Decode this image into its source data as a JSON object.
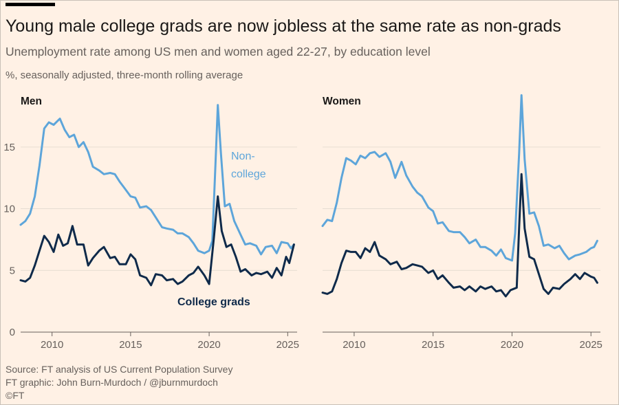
{
  "header": {
    "title": "Young male college grads are now jobless at the same rate as non-grads",
    "subtitle": "Unemployment rate among US men and women aged 22-27, by education level",
    "units": "%, seasonally adjusted, three-month rolling average"
  },
  "footer": {
    "source": "Source: FT analysis of US Current Population Survey",
    "credit": "FT graphic: John Burn-Murdoch / @jburnmurdoch",
    "copyright": "©FT"
  },
  "colors": {
    "background": "#fff1e5",
    "non_college": "#5da5da",
    "college": "#0f2a4a",
    "grid": "#e6dcd2",
    "axis": "#66605c"
  },
  "chart_data": [
    {
      "type": "line",
      "title": "Men",
      "xlim": [
        2008.0,
        2025.6
      ],
      "ylim": [
        0,
        18
      ],
      "x_ticks": [
        2010,
        2015,
        2020,
        2025
      ],
      "y_ticks": [
        0,
        5,
        10,
        15
      ],
      "grid": true,
      "annotations": [
        {
          "series": "Non-college",
          "text": [
            "Non-",
            "college"
          ]
        },
        {
          "series": "College grads",
          "text": [
            "College grads"
          ]
        }
      ],
      "series": [
        {
          "name": "Non-college",
          "color": "#5da5da",
          "points": [
            [
              2008.0,
              8.7
            ],
            [
              2008.3,
              9.0
            ],
            [
              2008.6,
              9.6
            ],
            [
              2008.9,
              11.0
            ],
            [
              2009.2,
              13.5
            ],
            [
              2009.5,
              16.5
            ],
            [
              2009.8,
              17.0
            ],
            [
              2010.1,
              16.8
            ],
            [
              2010.5,
              17.3
            ],
            [
              2010.8,
              16.4
            ],
            [
              2011.1,
              15.8
            ],
            [
              2011.4,
              16.0
            ],
            [
              2011.7,
              15.0
            ],
            [
              2012.0,
              15.4
            ],
            [
              2012.3,
              14.6
            ],
            [
              2012.6,
              13.4
            ],
            [
              2013.0,
              13.1
            ],
            [
              2013.3,
              12.8
            ],
            [
              2013.7,
              12.9
            ],
            [
              2014.0,
              12.8
            ],
            [
              2014.3,
              12.2
            ],
            [
              2014.6,
              11.7
            ],
            [
              2015.0,
              11.0
            ],
            [
              2015.3,
              10.9
            ],
            [
              2015.6,
              10.1
            ],
            [
              2016.0,
              10.2
            ],
            [
              2016.3,
              9.9
            ],
            [
              2016.6,
              9.3
            ],
            [
              2017.0,
              8.5
            ],
            [
              2017.3,
              8.4
            ],
            [
              2017.7,
              8.3
            ],
            [
              2018.0,
              8.0
            ],
            [
              2018.3,
              8.0
            ],
            [
              2018.7,
              7.7
            ],
            [
              2019.0,
              7.2
            ],
            [
              2019.3,
              6.6
            ],
            [
              2019.7,
              6.4
            ],
            [
              2020.0,
              6.6
            ],
            [
              2020.2,
              7.4
            ],
            [
              2020.4,
              13.5
            ],
            [
              2020.55,
              18.4
            ],
            [
              2020.75,
              14.5
            ],
            [
              2021.0,
              10.2
            ],
            [
              2021.3,
              10.4
            ],
            [
              2021.6,
              9.0
            ],
            [
              2022.0,
              7.9
            ],
            [
              2022.3,
              7.1
            ],
            [
              2022.6,
              7.2
            ],
            [
              2023.0,
              7.0
            ],
            [
              2023.3,
              6.3
            ],
            [
              2023.6,
              6.9
            ],
            [
              2024.0,
              7.0
            ],
            [
              2024.3,
              6.4
            ],
            [
              2024.6,
              7.3
            ],
            [
              2025.0,
              7.2
            ],
            [
              2025.2,
              6.8
            ],
            [
              2025.4,
              7.1
            ]
          ]
        },
        {
          "name": "College grads",
          "color": "#0f2a4a",
          "points": [
            [
              2008.0,
              4.2
            ],
            [
              2008.3,
              4.1
            ],
            [
              2008.6,
              4.4
            ],
            [
              2008.9,
              5.4
            ],
            [
              2009.2,
              6.6
            ],
            [
              2009.5,
              7.8
            ],
            [
              2009.8,
              7.3
            ],
            [
              2010.1,
              6.5
            ],
            [
              2010.4,
              7.9
            ],
            [
              2010.7,
              7.0
            ],
            [
              2011.0,
              7.2
            ],
            [
              2011.3,
              8.6
            ],
            [
              2011.6,
              7.1
            ],
            [
              2012.0,
              7.1
            ],
            [
              2012.3,
              5.4
            ],
            [
              2012.6,
              6.0
            ],
            [
              2013.0,
              6.6
            ],
            [
              2013.3,
              6.9
            ],
            [
              2013.7,
              6.0
            ],
            [
              2014.0,
              6.1
            ],
            [
              2014.3,
              5.5
            ],
            [
              2014.7,
              5.5
            ],
            [
              2015.0,
              6.3
            ],
            [
              2015.3,
              5.9
            ],
            [
              2015.6,
              4.6
            ],
            [
              2016.0,
              4.4
            ],
            [
              2016.3,
              3.8
            ],
            [
              2016.6,
              4.7
            ],
            [
              2017.0,
              4.6
            ],
            [
              2017.3,
              4.2
            ],
            [
              2017.7,
              4.3
            ],
            [
              2018.0,
              3.9
            ],
            [
              2018.3,
              4.1
            ],
            [
              2018.7,
              4.6
            ],
            [
              2019.0,
              4.8
            ],
            [
              2019.3,
              5.3
            ],
            [
              2019.7,
              4.6
            ],
            [
              2020.0,
              3.9
            ],
            [
              2020.3,
              7.6
            ],
            [
              2020.55,
              11.0
            ],
            [
              2020.8,
              8.2
            ],
            [
              2021.1,
              6.9
            ],
            [
              2021.4,
              7.1
            ],
            [
              2021.7,
              6.1
            ],
            [
              2022.0,
              4.9
            ],
            [
              2022.3,
              5.1
            ],
            [
              2022.7,
              4.6
            ],
            [
              2023.0,
              4.8
            ],
            [
              2023.3,
              4.7
            ],
            [
              2023.7,
              4.9
            ],
            [
              2024.0,
              4.4
            ],
            [
              2024.3,
              5.2
            ],
            [
              2024.6,
              4.6
            ],
            [
              2024.9,
              6.1
            ],
            [
              2025.1,
              5.6
            ],
            [
              2025.4,
              7.1
            ]
          ]
        }
      ]
    },
    {
      "type": "line",
      "title": "Women",
      "xlim": [
        2008.0,
        2025.6
      ],
      "ylim": [
        0,
        18
      ],
      "x_ticks": [
        2010,
        2015,
        2020,
        2025
      ],
      "y_ticks": [
        0,
        5,
        10,
        15
      ],
      "grid": true,
      "series": [
        {
          "name": "Non-college",
          "color": "#5da5da",
          "points": [
            [
              2008.0,
              8.6
            ],
            [
              2008.3,
              9.1
            ],
            [
              2008.6,
              9.0
            ],
            [
              2008.9,
              10.5
            ],
            [
              2009.2,
              12.5
            ],
            [
              2009.5,
              14.1
            ],
            [
              2009.8,
              13.9
            ],
            [
              2010.1,
              13.6
            ],
            [
              2010.4,
              14.3
            ],
            [
              2010.7,
              14.1
            ],
            [
              2011.0,
              14.5
            ],
            [
              2011.3,
              14.6
            ],
            [
              2011.6,
              14.2
            ],
            [
              2012.0,
              14.5
            ],
            [
              2012.3,
              13.8
            ],
            [
              2012.6,
              12.5
            ],
            [
              2013.0,
              13.8
            ],
            [
              2013.3,
              12.7
            ],
            [
              2013.7,
              11.8
            ],
            [
              2014.0,
              11.3
            ],
            [
              2014.3,
              11.0
            ],
            [
              2014.7,
              10.1
            ],
            [
              2015.0,
              9.8
            ],
            [
              2015.3,
              8.8
            ],
            [
              2015.6,
              8.9
            ],
            [
              2016.0,
              8.2
            ],
            [
              2016.3,
              8.1
            ],
            [
              2016.7,
              8.1
            ],
            [
              2017.0,
              7.7
            ],
            [
              2017.3,
              7.2
            ],
            [
              2017.7,
              7.5
            ],
            [
              2018.0,
              6.9
            ],
            [
              2018.3,
              6.9
            ],
            [
              2018.7,
              6.6
            ],
            [
              2019.0,
              6.2
            ],
            [
              2019.3,
              6.7
            ],
            [
              2019.6,
              6.0
            ],
            [
              2020.0,
              5.8
            ],
            [
              2020.2,
              8.0
            ],
            [
              2020.45,
              14.5
            ],
            [
              2020.6,
              19.2
            ],
            [
              2020.8,
              14.0
            ],
            [
              2021.1,
              9.6
            ],
            [
              2021.4,
              9.7
            ],
            [
              2021.7,
              8.6
            ],
            [
              2022.0,
              7.0
            ],
            [
              2022.3,
              7.1
            ],
            [
              2022.7,
              6.8
            ],
            [
              2023.0,
              7.0
            ],
            [
              2023.3,
              6.4
            ],
            [
              2023.6,
              5.9
            ],
            [
              2024.0,
              6.2
            ],
            [
              2024.3,
              6.3
            ],
            [
              2024.7,
              6.5
            ],
            [
              2025.0,
              6.8
            ],
            [
              2025.2,
              6.9
            ],
            [
              2025.4,
              7.4
            ]
          ]
        },
        {
          "name": "College grads",
          "color": "#0f2a4a",
          "points": [
            [
              2008.0,
              3.2
            ],
            [
              2008.3,
              3.1
            ],
            [
              2008.6,
              3.3
            ],
            [
              2008.9,
              4.3
            ],
            [
              2009.2,
              5.6
            ],
            [
              2009.5,
              6.6
            ],
            [
              2009.8,
              6.5
            ],
            [
              2010.1,
              6.5
            ],
            [
              2010.4,
              6.0
            ],
            [
              2010.7,
              6.8
            ],
            [
              2011.0,
              6.5
            ],
            [
              2011.3,
              7.3
            ],
            [
              2011.6,
              6.2
            ],
            [
              2012.0,
              5.9
            ],
            [
              2012.3,
              5.5
            ],
            [
              2012.7,
              5.7
            ],
            [
              2013.0,
              5.1
            ],
            [
              2013.3,
              5.2
            ],
            [
              2013.7,
              5.5
            ],
            [
              2014.0,
              5.4
            ],
            [
              2014.3,
              5.3
            ],
            [
              2014.7,
              4.8
            ],
            [
              2015.0,
              5.0
            ],
            [
              2015.3,
              4.3
            ],
            [
              2015.6,
              4.6
            ],
            [
              2016.0,
              4.0
            ],
            [
              2016.3,
              3.6
            ],
            [
              2016.7,
              3.7
            ],
            [
              2017.0,
              3.4
            ],
            [
              2017.3,
              3.7
            ],
            [
              2017.7,
              3.3
            ],
            [
              2018.0,
              3.7
            ],
            [
              2018.3,
              3.5
            ],
            [
              2018.7,
              3.7
            ],
            [
              2019.0,
              3.3
            ],
            [
              2019.3,
              3.4
            ],
            [
              2019.6,
              2.9
            ],
            [
              2019.9,
              3.4
            ],
            [
              2020.1,
              3.5
            ],
            [
              2020.3,
              3.6
            ],
            [
              2020.45,
              8.5
            ],
            [
              2020.6,
              12.8
            ],
            [
              2020.8,
              8.4
            ],
            [
              2021.1,
              6.1
            ],
            [
              2021.4,
              5.9
            ],
            [
              2021.7,
              4.7
            ],
            [
              2022.0,
              3.5
            ],
            [
              2022.3,
              3.1
            ],
            [
              2022.6,
              3.6
            ],
            [
              2023.0,
              3.5
            ],
            [
              2023.3,
              3.9
            ],
            [
              2023.7,
              4.3
            ],
            [
              2024.0,
              4.7
            ],
            [
              2024.3,
              4.3
            ],
            [
              2024.6,
              4.8
            ],
            [
              2025.0,
              4.5
            ],
            [
              2025.2,
              4.4
            ],
            [
              2025.4,
              4.0
            ]
          ]
        }
      ]
    }
  ]
}
